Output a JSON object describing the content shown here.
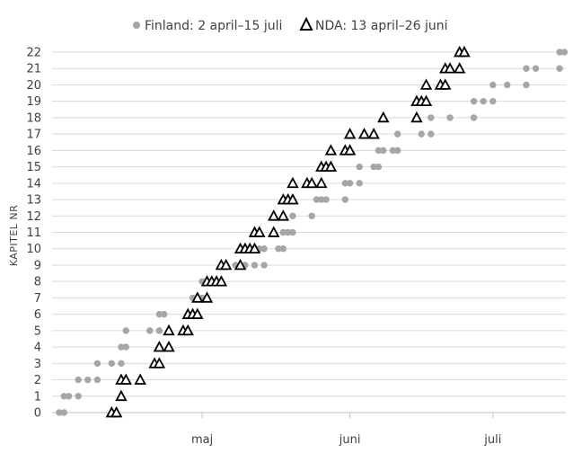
{
  "chart_data": {
    "type": "scatter",
    "ylabel": "KAPITEL NR",
    "xlabel": "",
    "x_tick_labels": [
      "maj",
      "juni",
      "juli"
    ],
    "x_tick_dates": [
      "2024-05-01",
      "2024-06-01",
      "2024-07-01"
    ],
    "xlim": [
      "2024-04-01",
      "2024-07-15"
    ],
    "ylim": [
      0,
      22
    ],
    "y_ticks": [
      0,
      1,
      2,
      3,
      4,
      5,
      6,
      7,
      8,
      9,
      10,
      11,
      12,
      13,
      14,
      15,
      16,
      17,
      18,
      19,
      20,
      21,
      22
    ],
    "grid": "horizontal",
    "legend_position": "top",
    "series": [
      {
        "name": "Finland: 2 april–15 juli",
        "marker": "circle",
        "color": "#a6a6a6",
        "points": [
          [
            "2024-04-01",
            0
          ],
          [
            "2024-04-02",
            0
          ],
          [
            "2024-04-02",
            1
          ],
          [
            "2024-04-03",
            1
          ],
          [
            "2024-04-05",
            1
          ],
          [
            "2024-04-05",
            2
          ],
          [
            "2024-04-07",
            2
          ],
          [
            "2024-04-09",
            2
          ],
          [
            "2024-04-09",
            3
          ],
          [
            "2024-04-12",
            3
          ],
          [
            "2024-04-14",
            3
          ],
          [
            "2024-04-14",
            4
          ],
          [
            "2024-04-15",
            4
          ],
          [
            "2024-04-15",
            5
          ],
          [
            "2024-04-20",
            5
          ],
          [
            "2024-04-22",
            5
          ],
          [
            "2024-04-22",
            6
          ],
          [
            "2024-04-23",
            6
          ],
          [
            "2024-04-28",
            6
          ],
          [
            "2024-04-30",
            6
          ],
          [
            "2024-04-29",
            7
          ],
          [
            "2024-05-01",
            7
          ],
          [
            "2024-05-01",
            8
          ],
          [
            "2024-05-03",
            8
          ],
          [
            "2024-05-08",
            9
          ],
          [
            "2024-05-10",
            9
          ],
          [
            "2024-05-12",
            9
          ],
          [
            "2024-05-14",
            9
          ],
          [
            "2024-05-13",
            10
          ],
          [
            "2024-05-14",
            10
          ],
          [
            "2024-05-17",
            10
          ],
          [
            "2024-05-18",
            10
          ],
          [
            "2024-05-18",
            11
          ],
          [
            "2024-05-19",
            11
          ],
          [
            "2024-05-20",
            11
          ],
          [
            "2024-05-20",
            12
          ],
          [
            "2024-05-24",
            12
          ],
          [
            "2024-05-25",
            13
          ],
          [
            "2024-05-26",
            13
          ],
          [
            "2024-05-27",
            13
          ],
          [
            "2024-05-31",
            13
          ],
          [
            "2024-05-31",
            14
          ],
          [
            "2024-06-01",
            14
          ],
          [
            "2024-06-03",
            14
          ],
          [
            "2024-06-03",
            15
          ],
          [
            "2024-06-06",
            15
          ],
          [
            "2024-06-07",
            15
          ],
          [
            "2024-06-07",
            16
          ],
          [
            "2024-06-08",
            16
          ],
          [
            "2024-06-10",
            16
          ],
          [
            "2024-06-11",
            16
          ],
          [
            "2024-06-11",
            17
          ],
          [
            "2024-06-16",
            17
          ],
          [
            "2024-06-18",
            17
          ],
          [
            "2024-06-18",
            18
          ],
          [
            "2024-06-22",
            18
          ],
          [
            "2024-06-27",
            18
          ],
          [
            "2024-06-27",
            19
          ],
          [
            "2024-06-29",
            19
          ],
          [
            "2024-07-01",
            19
          ],
          [
            "2024-07-01",
            20
          ],
          [
            "2024-07-04",
            20
          ],
          [
            "2024-07-08",
            20
          ],
          [
            "2024-07-08",
            21
          ],
          [
            "2024-07-10",
            21
          ],
          [
            "2024-07-15",
            21
          ],
          [
            "2024-07-15",
            22
          ],
          [
            "2024-07-16",
            22
          ]
        ]
      },
      {
        "name": "NDA: 13 april–26 juni",
        "marker": "triangle",
        "color": "#000000",
        "points": [
          [
            "2024-04-12",
            0
          ],
          [
            "2024-04-13",
            0
          ],
          [
            "2024-04-14",
            1
          ],
          [
            "2024-04-14",
            2
          ],
          [
            "2024-04-15",
            2
          ],
          [
            "2024-04-18",
            2
          ],
          [
            "2024-04-21",
            3
          ],
          [
            "2024-04-22",
            3
          ],
          [
            "2024-04-22",
            4
          ],
          [
            "2024-04-24",
            4
          ],
          [
            "2024-04-24",
            5
          ],
          [
            "2024-04-27",
            5
          ],
          [
            "2024-04-28",
            5
          ],
          [
            "2024-04-28",
            6
          ],
          [
            "2024-04-29",
            6
          ],
          [
            "2024-04-30",
            6
          ],
          [
            "2024-04-30",
            7
          ],
          [
            "2024-05-02",
            7
          ],
          [
            "2024-05-02",
            8
          ],
          [
            "2024-05-03",
            8
          ],
          [
            "2024-05-04",
            8
          ],
          [
            "2024-05-05",
            8
          ],
          [
            "2024-05-05",
            9
          ],
          [
            "2024-05-06",
            9
          ],
          [
            "2024-05-09",
            9
          ],
          [
            "2024-05-09",
            10
          ],
          [
            "2024-05-10",
            10
          ],
          [
            "2024-05-11",
            10
          ],
          [
            "2024-05-12",
            10
          ],
          [
            "2024-05-12",
            11
          ],
          [
            "2024-05-13",
            11
          ],
          [
            "2024-05-16",
            11
          ],
          [
            "2024-05-16",
            12
          ],
          [
            "2024-05-18",
            12
          ],
          [
            "2024-05-18",
            13
          ],
          [
            "2024-05-19",
            13
          ],
          [
            "2024-05-20",
            13
          ],
          [
            "2024-05-20",
            14
          ],
          [
            "2024-05-23",
            14
          ],
          [
            "2024-05-24",
            14
          ],
          [
            "2024-05-26",
            14
          ],
          [
            "2024-05-26",
            15
          ],
          [
            "2024-05-27",
            15
          ],
          [
            "2024-05-28",
            15
          ],
          [
            "2024-05-28",
            16
          ],
          [
            "2024-05-31",
            16
          ],
          [
            "2024-06-01",
            16
          ],
          [
            "2024-06-01",
            17
          ],
          [
            "2024-06-04",
            17
          ],
          [
            "2024-06-06",
            17
          ],
          [
            "2024-06-08",
            18
          ],
          [
            "2024-06-15",
            18
          ],
          [
            "2024-06-15",
            19
          ],
          [
            "2024-06-16",
            19
          ],
          [
            "2024-06-17",
            19
          ],
          [
            "2024-06-17",
            20
          ],
          [
            "2024-06-20",
            20
          ],
          [
            "2024-06-21",
            20
          ],
          [
            "2024-06-21",
            21
          ],
          [
            "2024-06-22",
            21
          ],
          [
            "2024-06-24",
            21
          ],
          [
            "2024-06-24",
            22
          ],
          [
            "2024-06-25",
            22
          ]
        ]
      }
    ]
  }
}
